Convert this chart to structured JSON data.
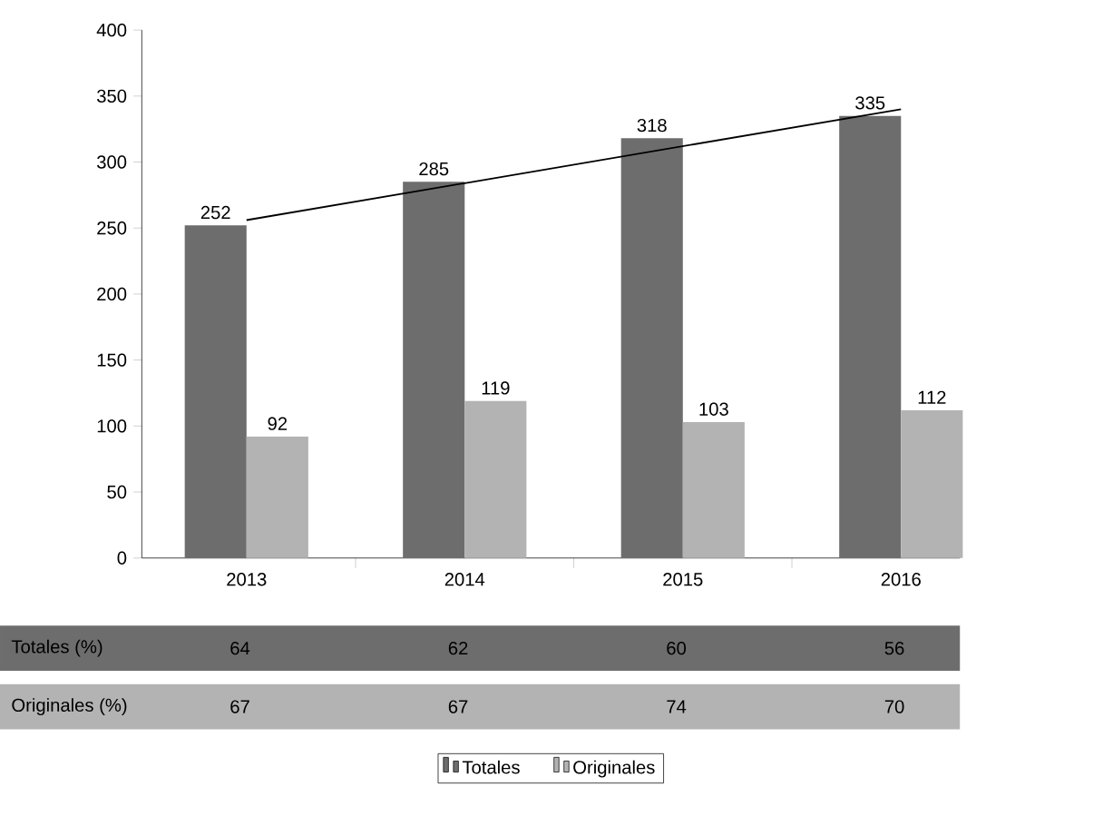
{
  "chart_data": {
    "type": "bar",
    "categories": [
      "2013",
      "2014",
      "2015",
      "2016"
    ],
    "series": [
      {
        "name": "Totales",
        "color": "#6d6d6d",
        "values": [
          252,
          285,
          318,
          335
        ],
        "value_labels": [
          "252",
          "285",
          "318",
          "335"
        ]
      },
      {
        "name": "Originales",
        "color": "#b3b3b3",
        "values": [
          92,
          119,
          103,
          112
        ],
        "value_labels": [
          "92",
          "119",
          "103",
          "112"
        ]
      },
      {
        "type": "line",
        "color": "#000000",
        "values": [
          256,
          284,
          312,
          340
        ]
      }
    ],
    "ylim": [
      0,
      400
    ],
    "yticks": [
      0,
      50,
      100,
      150,
      200,
      250,
      300,
      350,
      400
    ],
    "legend": "bottom",
    "grid": false,
    "annotations": [
      "Totales (%)",
      "64",
      "62",
      "60",
      "56",
      "Originales (%)",
      "67",
      "67",
      "74",
      "70"
    ]
  }
}
